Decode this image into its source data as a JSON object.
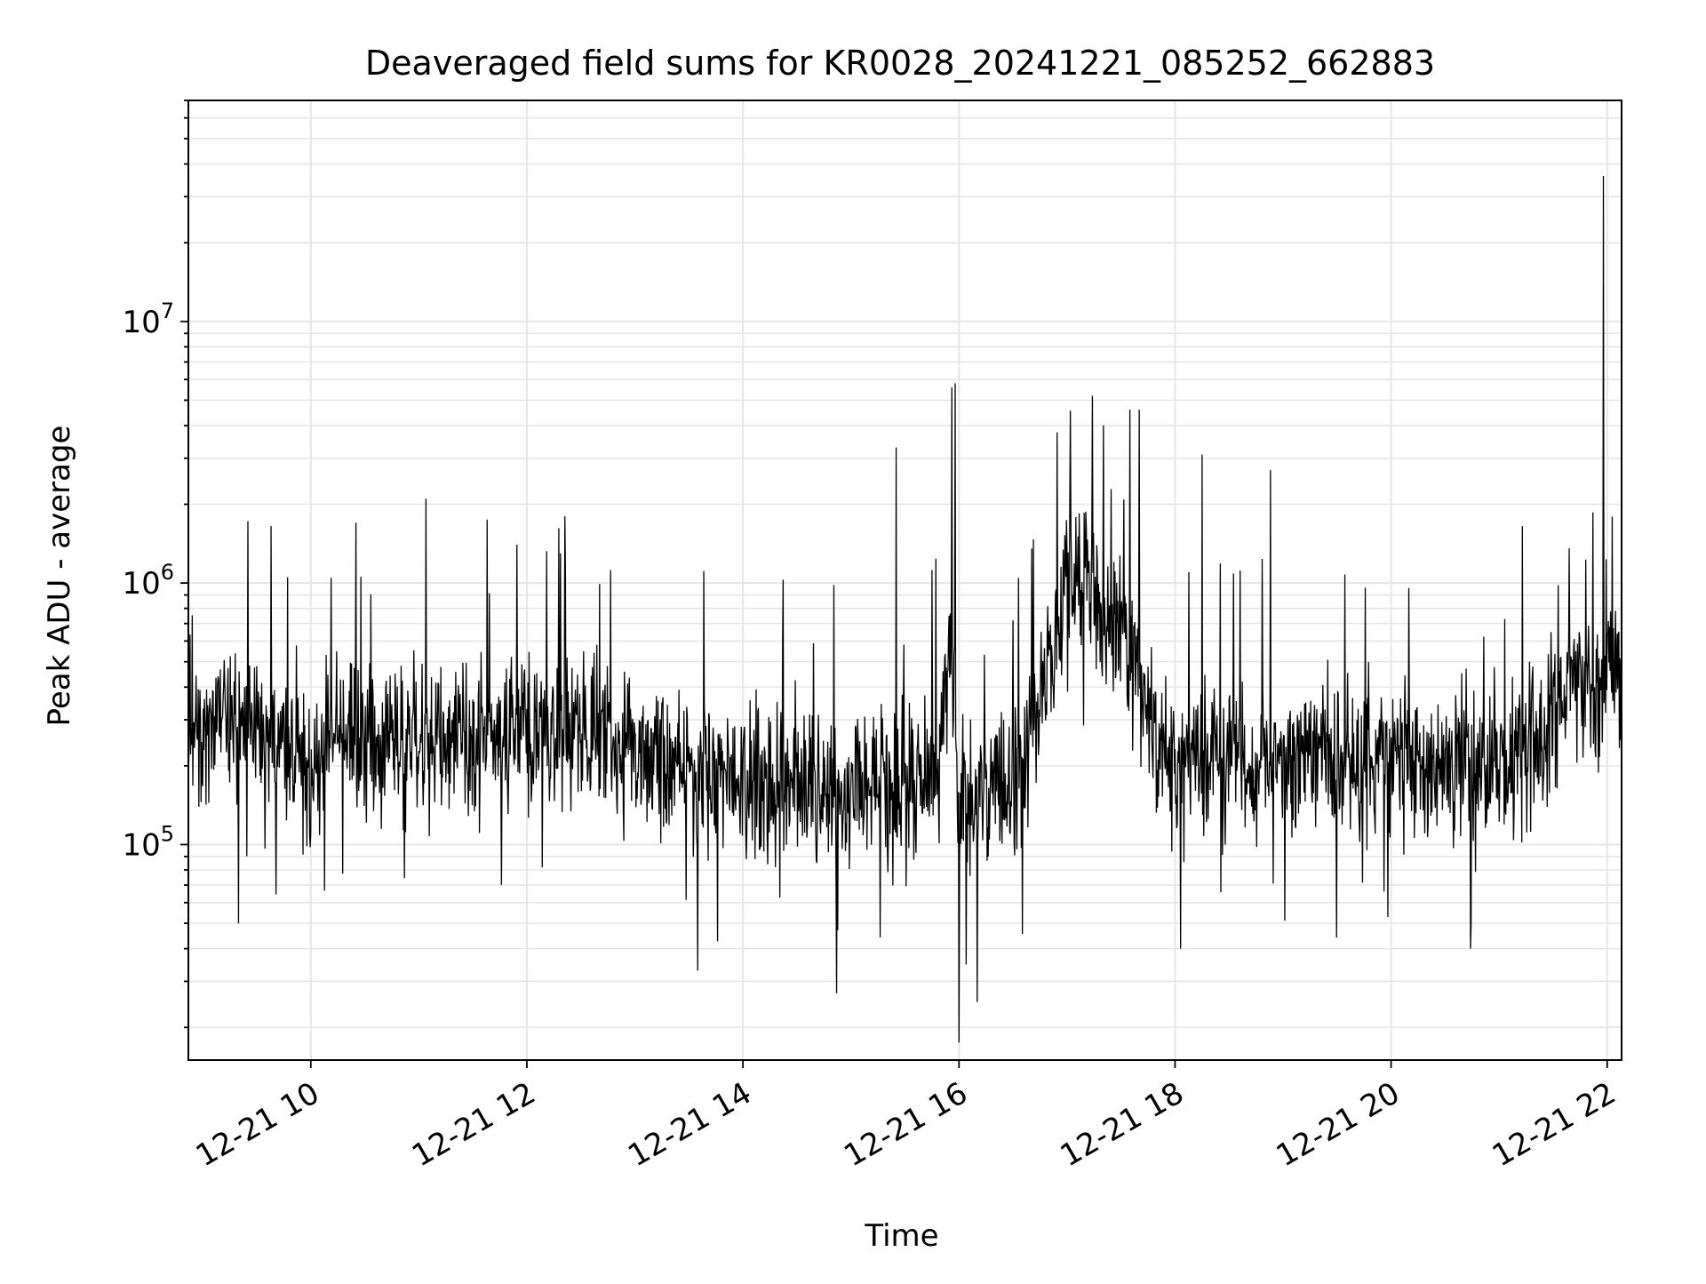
{
  "chart_data": {
    "type": "line",
    "title": "Deaveraged field sums for KR0028_20241221_085252_662883",
    "xlabel": "Time",
    "ylabel": "Peak ADU - average",
    "x_axis": {
      "kind": "datetime",
      "range": [
        "2024-12-21T08:52",
        "2024-12-21T22:08"
      ],
      "ticks": [
        "12-21 10",
        "12-21 12",
        "12-21 14",
        "12-21 16",
        "12-21 18",
        "12-21 20",
        "12-21 22"
      ],
      "tick_times": [
        "2024-12-21T10:00",
        "2024-12-21T12:00",
        "2024-12-21T14:00",
        "2024-12-21T16:00",
        "2024-12-21T18:00",
        "2024-12-21T20:00",
        "2024-12-21T22:00"
      ],
      "tick_rotation_deg": 30
    },
    "y_axis": {
      "scale": "log",
      "range": [
        15000,
        70000000
      ],
      "ticks": [
        {
          "value": 100000,
          "base": "10",
          "exp": "5"
        },
        {
          "value": 1000000,
          "base": "10",
          "exp": "6"
        },
        {
          "value": 10000000,
          "base": "10",
          "exp": "7"
        }
      ]
    },
    "grid": true,
    "grid_color": "#e6e6e6",
    "line_color": "#000000",
    "series": [
      {
        "points": [
          [
            "2024-12-21T08:52",
            330000
          ],
          [
            "2024-12-21T09:00",
            300000
          ],
          [
            "2024-12-21T09:10",
            350000
          ],
          [
            "2024-12-21T09:20",
            280000
          ],
          [
            "2024-12-21T09:30",
            300000
          ],
          [
            "2024-12-21T09:40",
            250000
          ],
          [
            "2024-12-21T09:50",
            220000
          ],
          [
            "2024-12-21T10:00",
            180000
          ],
          [
            "2024-12-21T10:10",
            230000
          ],
          [
            "2024-12-21T10:20",
            260000
          ],
          [
            "2024-12-21T10:30",
            250000
          ],
          [
            "2024-12-21T10:40",
            240000
          ],
          [
            "2024-12-21T10:50",
            250000
          ],
          [
            "2024-12-21T11:00",
            260000
          ],
          [
            "2024-12-21T11:10",
            250000
          ],
          [
            "2024-12-21T11:20",
            240000
          ],
          [
            "2024-12-21T11:30",
            250000
          ],
          [
            "2024-12-21T11:40",
            260000
          ],
          [
            "2024-12-21T11:50",
            270000
          ],
          [
            "2024-12-21T12:00",
            280000
          ],
          [
            "2024-12-21T12:10",
            290000
          ],
          [
            "2024-12-21T12:20",
            270000
          ],
          [
            "2024-12-21T12:30",
            260000
          ],
          [
            "2024-12-21T12:40",
            250000
          ],
          [
            "2024-12-21T12:50",
            220000
          ],
          [
            "2024-12-21T13:00",
            230000
          ],
          [
            "2024-12-21T13:10",
            220000
          ],
          [
            "2024-12-21T13:20",
            210000
          ],
          [
            "2024-12-21T13:30",
            200000
          ],
          [
            "2024-12-21T13:40",
            200000
          ],
          [
            "2024-12-21T13:50",
            190000
          ],
          [
            "2024-12-21T14:00",
            180000
          ],
          [
            "2024-12-21T14:10",
            170000
          ],
          [
            "2024-12-21T14:20",
            180000
          ],
          [
            "2024-12-21T14:30",
            180000
          ],
          [
            "2024-12-21T14:40",
            170000
          ],
          [
            "2024-12-21T14:50",
            170000
          ],
          [
            "2024-12-21T15:00",
            170000
          ],
          [
            "2024-12-21T15:10",
            160000
          ],
          [
            "2024-12-21T15:20",
            170000
          ],
          [
            "2024-12-21T15:30",
            160000
          ],
          [
            "2024-12-21T15:40",
            170000
          ],
          [
            "2024-12-21T15:50",
            240000
          ],
          [
            "2024-12-21T15:55",
            500000
          ],
          [
            "2024-12-21T16:00",
            150000
          ],
          [
            "2024-12-21T16:10",
            160000
          ],
          [
            "2024-12-21T16:20",
            160000
          ],
          [
            "2024-12-21T16:30",
            160000
          ],
          [
            "2024-12-21T16:40",
            250000
          ],
          [
            "2024-12-21T16:50",
            500000
          ],
          [
            "2024-12-21T17:00",
            900000
          ],
          [
            "2024-12-21T17:10",
            1000000
          ],
          [
            "2024-12-21T17:20",
            800000
          ],
          [
            "2024-12-21T17:30",
            600000
          ],
          [
            "2024-12-21T17:40",
            400000
          ],
          [
            "2024-12-21T17:50",
            220000
          ],
          [
            "2024-12-21T18:00",
            190000
          ],
          [
            "2024-12-21T18:10",
            200000
          ],
          [
            "2024-12-21T18:20",
            210000
          ],
          [
            "2024-12-21T18:30",
            200000
          ],
          [
            "2024-12-21T18:40",
            200000
          ],
          [
            "2024-12-21T18:50",
            200000
          ],
          [
            "2024-12-21T19:00",
            200000
          ],
          [
            "2024-12-21T19:10",
            210000
          ],
          [
            "2024-12-21T19:20",
            210000
          ],
          [
            "2024-12-21T19:30",
            200000
          ],
          [
            "2024-12-21T19:40",
            200000
          ],
          [
            "2024-12-21T19:50",
            210000
          ],
          [
            "2024-12-21T20:00",
            210000
          ],
          [
            "2024-12-21T20:10",
            220000
          ],
          [
            "2024-12-21T20:20",
            210000
          ],
          [
            "2024-12-21T20:30",
            210000
          ],
          [
            "2024-12-21T20:40",
            210000
          ],
          [
            "2024-12-21T20:50",
            200000
          ],
          [
            "2024-12-21T21:00",
            190000
          ],
          [
            "2024-12-21T21:10",
            220000
          ],
          [
            "2024-12-21T21:20",
            250000
          ],
          [
            "2024-12-21T21:30",
            280000
          ],
          [
            "2024-12-21T21:35",
            400000
          ],
          [
            "2024-12-21T21:45",
            420000
          ],
          [
            "2024-12-21T21:55",
            400000
          ],
          [
            "2024-12-21T21:59",
            450000
          ],
          [
            "2024-12-21T22:05",
            480000
          ],
          [
            "2024-12-21T22:08",
            450000
          ]
        ],
        "noise": {
          "pos_ratio": 2.4,
          "neg_ratio": 0.36,
          "amp_ratio": 1.3
        },
        "spikes": [
          [
            "2024-12-21T09:38",
            1650000
          ],
          [
            "2024-12-21T10:25",
            1700000
          ],
          [
            "2024-12-21T11:04",
            2100000
          ],
          [
            "2024-12-21T11:38",
            1750000
          ],
          [
            "2024-12-21T12:21",
            1800000
          ],
          [
            "2024-12-21T15:25",
            3300000
          ],
          [
            "2024-12-21T15:56",
            5600000
          ],
          [
            "2024-12-21T15:58",
            5800000
          ],
          [
            "2024-12-21T16:00",
            2400000
          ],
          [
            "2024-12-21T17:14",
            5200000
          ],
          [
            "2024-12-21T17:35",
            4600000
          ],
          [
            "2024-12-21T17:40",
            4600000
          ],
          [
            "2024-12-21T18:15",
            3100000
          ],
          [
            "2024-12-21T18:53",
            2700000
          ],
          [
            "2024-12-21T21:13",
            1650000
          ],
          [
            "2024-12-21T21:58",
            36000000
          ]
        ],
        "dips": [
          [
            "2024-12-21T09:20",
            50000
          ],
          [
            "2024-12-21T13:35",
            33000
          ],
          [
            "2024-12-21T14:52",
            27000
          ],
          [
            "2024-12-21T16:00",
            17500
          ],
          [
            "2024-12-21T16:10",
            25000
          ],
          [
            "2024-12-21T18:03",
            40000
          ],
          [
            "2024-12-21T20:44",
            40000
          ]
        ]
      }
    ]
  }
}
